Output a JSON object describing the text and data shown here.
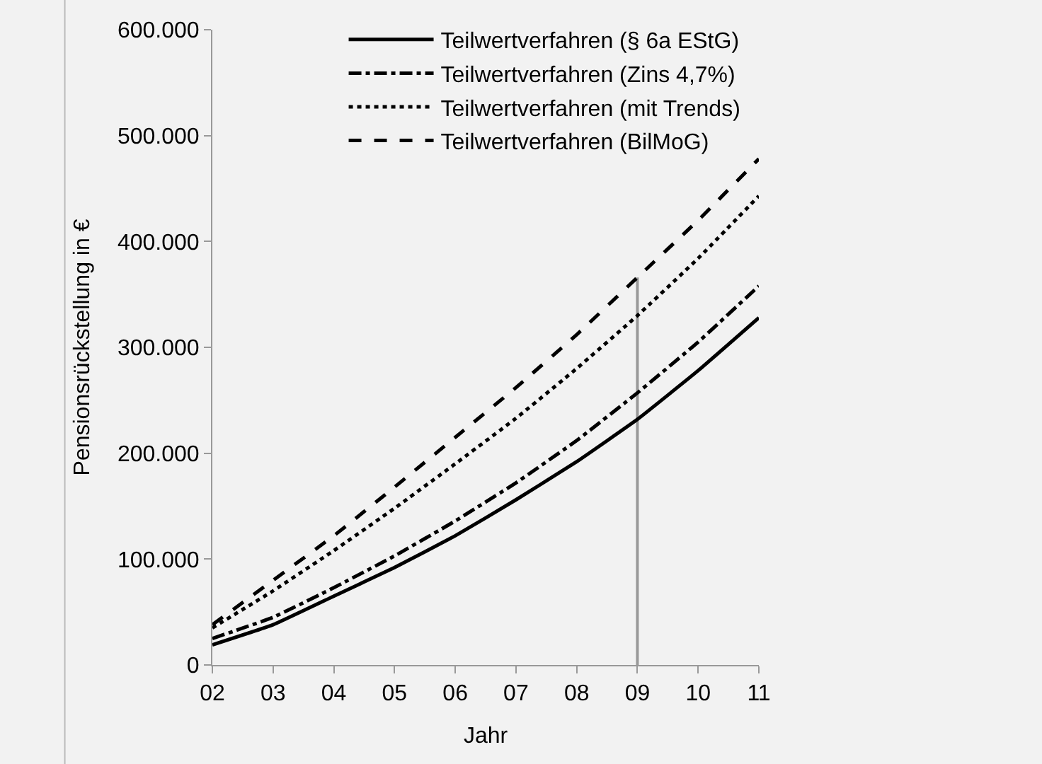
{
  "chart_data": {
    "type": "line",
    "xlabel": "Jahr",
    "ylabel": "Pensionsrückstellung in €",
    "x": [
      2,
      3,
      4,
      5,
      6,
      7,
      8,
      9,
      10,
      11
    ],
    "xlim": [
      2,
      11
    ],
    "xticks": [
      {
        "value": 2,
        "label": "02"
      },
      {
        "value": 3,
        "label": "03"
      },
      {
        "value": 4,
        "label": "04"
      },
      {
        "value": 5,
        "label": "05"
      },
      {
        "value": 6,
        "label": "06"
      },
      {
        "value": 7,
        "label": "07"
      },
      {
        "value": 8,
        "label": "08"
      },
      {
        "value": 9,
        "label": "09"
      },
      {
        "value": 10,
        "label": "10"
      },
      {
        "value": 11,
        "label": "11"
      }
    ],
    "ylim": [
      0,
      600000
    ],
    "yticks": [
      0,
      {
        "value": 100000,
        "label": "100.000"
      },
      {
        "value": 200000,
        "label": "200.000"
      },
      {
        "value": 300000,
        "label": "300.000"
      },
      {
        "value": 400000,
        "label": "400.000"
      },
      {
        "value": 500000,
        "label": "500.000"
      },
      {
        "value": 600000,
        "label": "600.000"
      }
    ],
    "series": [
      {
        "name": "Teilwertverfahren (§ 6a EStG)",
        "color": "#000000",
        "line_style": "solid",
        "values": [
          19000,
          38000,
          65000,
          92000,
          122000,
          156000,
          192000,
          232000,
          278000,
          328000
        ]
      },
      {
        "name": "Teilwertverfahren (Zins 4,7%)",
        "color": "#000000",
        "line_style": "dashdot",
        "values": [
          25000,
          45000,
          73000,
          103000,
          136000,
          172000,
          212000,
          257000,
          305000,
          358000
        ]
      },
      {
        "name": "Teilwertverfahren (mit Trends)",
        "color": "#000000",
        "line_style": "dotted",
        "values": [
          35000,
          70000,
          108000,
          148000,
          190000,
          233000,
          280000,
          330000,
          384000,
          443000
        ]
      },
      {
        "name": "Teilwertverfahren (BilMoG)",
        "color": "#000000",
        "line_style": "dashed",
        "values": [
          38000,
          80000,
          122000,
          168000,
          215000,
          262000,
          312000,
          366000,
          420000,
          478000
        ]
      }
    ],
    "ref_lines": [
      {
        "axis": "x",
        "value": 9,
        "color": "#999999"
      }
    ],
    "legend": "top right",
    "grid": false,
    "marker": "none"
  }
}
